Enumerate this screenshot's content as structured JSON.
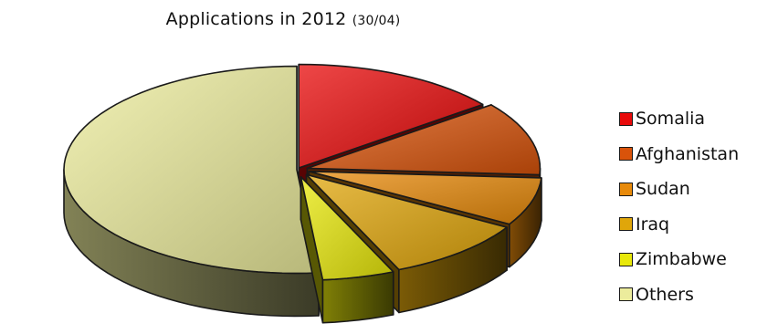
{
  "chart_data": {
    "type": "pie",
    "title": "Applications in 2012",
    "subtitle": "(30/04)",
    "categories": [
      "Somalia",
      "Afghanistan",
      "Sudan",
      "Iraq",
      "Zimbabwe",
      "Others"
    ],
    "values": [
      14.5,
      11.5,
      7.5,
      10,
      5,
      51.5
    ],
    "exploded": true,
    "three_d": true,
    "legend_position": "right",
    "colors": [
      "#e80a0a",
      "#d9530a",
      "#e88a0a",
      "#e0a60a",
      "#e8e80a",
      "#ecec9c"
    ]
  }
}
